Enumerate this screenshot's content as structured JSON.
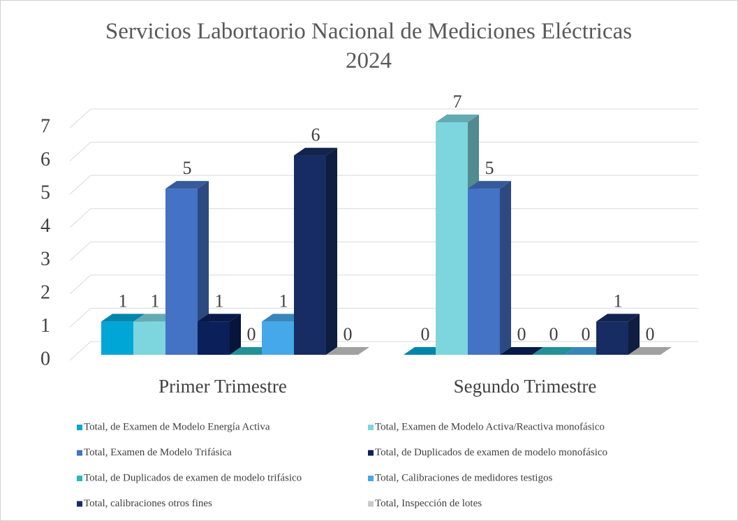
{
  "chart_data": {
    "type": "bar3d",
    "title": "Servicios Labortaorio Nacional de Mediciones Eléctricas 2024",
    "categories": [
      "Primer Trimestre",
      "Segundo Trimestre"
    ],
    "series": [
      {
        "name": "Total, de Examen de Modelo Energía Activa",
        "color": "#00a6d6",
        "values": [
          1,
          0
        ]
      },
      {
        "name": "Total, Examen de Modelo Activa/Reactiva monofásico",
        "color": "#7dd5de",
        "values": [
          1,
          7
        ]
      },
      {
        "name": "Total, Examen de Modelo Trifásica",
        "color": "#4472c4",
        "values": [
          5,
          5
        ]
      },
      {
        "name": "Total, de Duplicados de examen de modelo monofásico",
        "color": "#0b1f5a",
        "values": [
          1,
          0
        ]
      },
      {
        "name": "Total, de Duplicados de examen de modelo trifásico",
        "color": "#2bb5bd",
        "values": [
          0,
          0
        ]
      },
      {
        "name": "Total, Calibraciones de medidores testigos",
        "color": "#45a8e8",
        "values": [
          1,
          0
        ]
      },
      {
        "name": "Total, calibraciones otros fines",
        "color": "#162c62",
        "values": [
          6,
          1
        ]
      },
      {
        "name": "Total, Inspección de lotes",
        "color": "#c9c9c9",
        "values": [
          0,
          0
        ]
      }
    ],
    "ylim": [
      0,
      7
    ],
    "yticks": [
      0,
      1,
      2,
      3,
      4,
      5,
      6,
      7
    ],
    "grid": true,
    "legend": "bottom"
  }
}
